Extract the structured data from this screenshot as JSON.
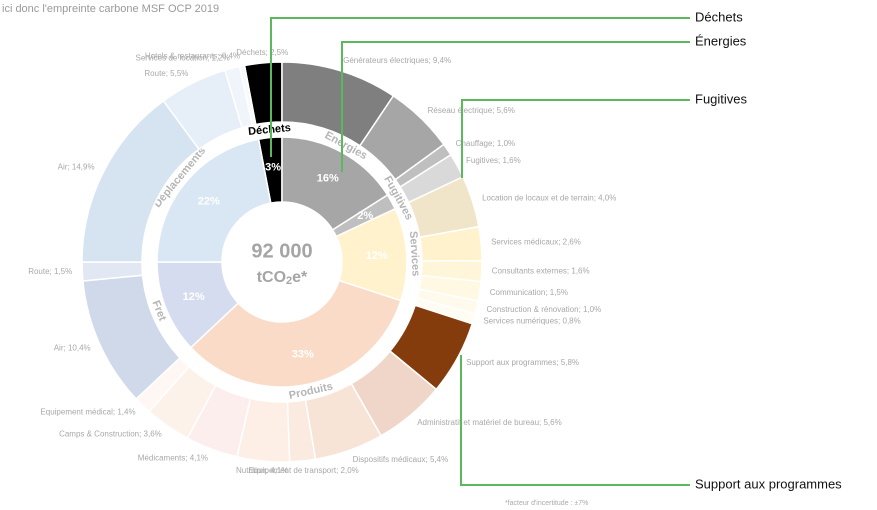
{
  "chart_data": {
    "type": "sunburst",
    "title": "ici donc l'empreinte carbone MSF OCP 2019",
    "total": "92 000",
    "unit": "tCO",
    "unit_sub": "2",
    "unit_suffix": "e*",
    "footnote": "*facteur d'incertitude : ±7%",
    "groups": [
      {
        "name": "Déchets",
        "value": 3,
        "value_label": "3%",
        "color": "#000000",
        "children": [
          {
            "label": "Déchets; 2,5%",
            "value": 2.5,
            "color": "#000000"
          }
        ]
      },
      {
        "name": "Énergies",
        "value": 16,
        "value_label": "16%",
        "color": "#a6a6a6",
        "children": [
          {
            "label": "Générateurs électriques; 9,4%",
            "value": 9.4,
            "color": "#7f7f7f"
          },
          {
            "label": "Réseau électrique; 5,6%",
            "value": 5.6,
            "color": "#a6a6a6"
          },
          {
            "label": "Chauffage; 1,0%",
            "value": 1.0,
            "color": "#bfbfbf"
          }
        ]
      },
      {
        "name": "Fugitives",
        "value": 2,
        "value_label": "2%",
        "color": "#bfbfbf",
        "children": [
          {
            "label": "Fugitives; 1,6%",
            "value": 1.6,
            "color": "#d9d9d9"
          }
        ]
      },
      {
        "name": "Services",
        "value": 12,
        "value_label": "12%",
        "color": "#fff2cc",
        "children": [
          {
            "label": "Location de locaux et de terrain; 4,0%",
            "value": 4.0,
            "color": "#f1e5c9"
          },
          {
            "label": "Services médicaux; 2,6%",
            "value": 2.6,
            "color": "#fff2cc"
          },
          {
            "label": "Consultants externes; 1,6%",
            "value": 1.6,
            "color": "#fff5d8"
          },
          {
            "label": "Communication; 1,5%",
            "value": 1.5,
            "color": "#fff8e3"
          },
          {
            "label": "Construction & rénovation; 1,0%",
            "value": 1.0,
            "color": "#fffaec"
          },
          {
            "label": "Services numériques; 0,8%",
            "value": 0.8,
            "color": "#fffcf4"
          }
        ]
      },
      {
        "name": "Produits",
        "value": 33,
        "value_label": "33%",
        "color": "#fadbc7",
        "children": [
          {
            "label": "Support aux programmes; 5,8%",
            "value": 5.8,
            "color": "#843c0c"
          },
          {
            "label": "Administratif et matériel de bureau; 5,6%",
            "value": 5.6,
            "color": "#f0d6c8"
          },
          {
            "label": "Dispositifs médicaux; 5,4%",
            "value": 5.4,
            "color": "#f8e3d7"
          },
          {
            "label": "Equipement de transport; 2,0%",
            "value": 2.0,
            "color": "#fbeae0"
          },
          {
            "label": "Nutrition; 4,1%",
            "value": 4.1,
            "color": "#fdeee6"
          },
          {
            "label": "Médicaments; 4,1%",
            "value": 4.1,
            "color": "#fdeeee"
          },
          {
            "label": "Camps & Construction; 3,6%",
            "value": 3.6,
            "color": "#fdf2ea"
          },
          {
            "label": "Equipement médical; 1,4%",
            "value": 1.4,
            "color": "#fef7f3"
          }
        ]
      },
      {
        "name": "Fret",
        "value": 12,
        "value_label": "12%",
        "color": "#d5dcef",
        "children": [
          {
            "label": "Air; 10,4%",
            "value": 10.4,
            "color": "#d0d9ea"
          },
          {
            "label": "Route; 1,5%",
            "value": 1.5,
            "color": "#e2e8f3"
          }
        ]
      },
      {
        "name": "Déplacements",
        "value": 22,
        "value_label": "22%",
        "color": "#d9e6f4",
        "children": [
          {
            "label": "Air; 14,9%",
            "value": 14.9,
            "color": "#d6e3f1"
          },
          {
            "label": "Route; 5,5%",
            "value": 5.5,
            "color": "#e6eef8"
          },
          {
            "label": "Services de location; 1,2%",
            "value": 1.2,
            "color": "#f0f5fb"
          },
          {
            "label": "Hotels & restaurants; 0,4%",
            "value": 0.4,
            "color": "#f7f9fd"
          }
        ]
      }
    ],
    "callouts": [
      {
        "label": "Déchets"
      },
      {
        "label": "Énergies"
      },
      {
        "label": "Fugitives"
      },
      {
        "label": "Support aux programmes"
      }
    ]
  }
}
